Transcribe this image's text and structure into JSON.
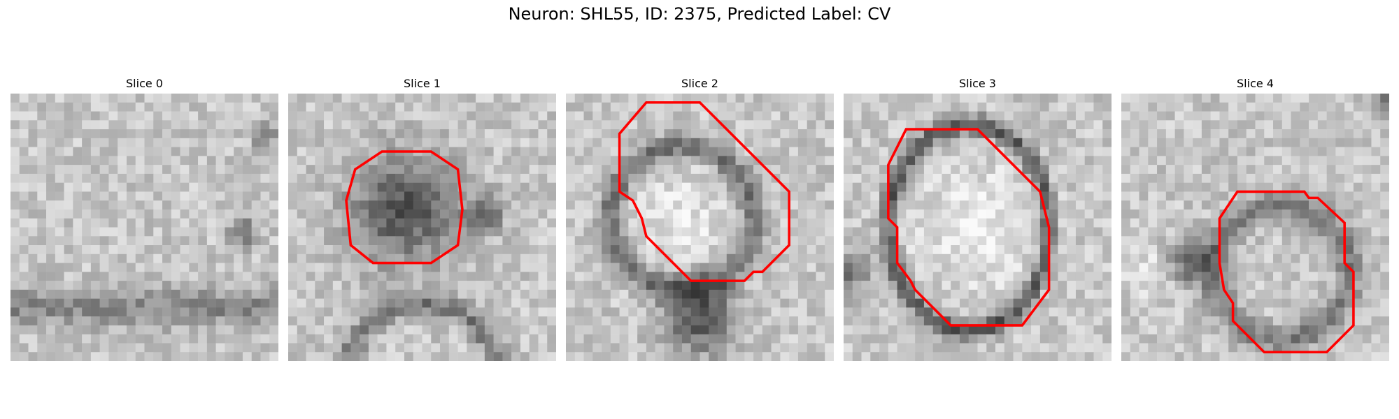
{
  "figure": {
    "title": "Neuron: SHL55, ID: 2375, Predicted Label: CV"
  },
  "panels": [
    {
      "title": "Slice 0",
      "has_contour": false
    },
    {
      "title": "Slice 1",
      "has_contour": true
    },
    {
      "title": "Slice 2",
      "has_contour": true
    },
    {
      "title": "Slice 3",
      "has_contour": true
    },
    {
      "title": "Slice 4",
      "has_contour": true
    }
  ],
  "colors": {
    "contour": "#ff0000",
    "background": "#ffffff",
    "image_colormap": "grayscale"
  }
}
